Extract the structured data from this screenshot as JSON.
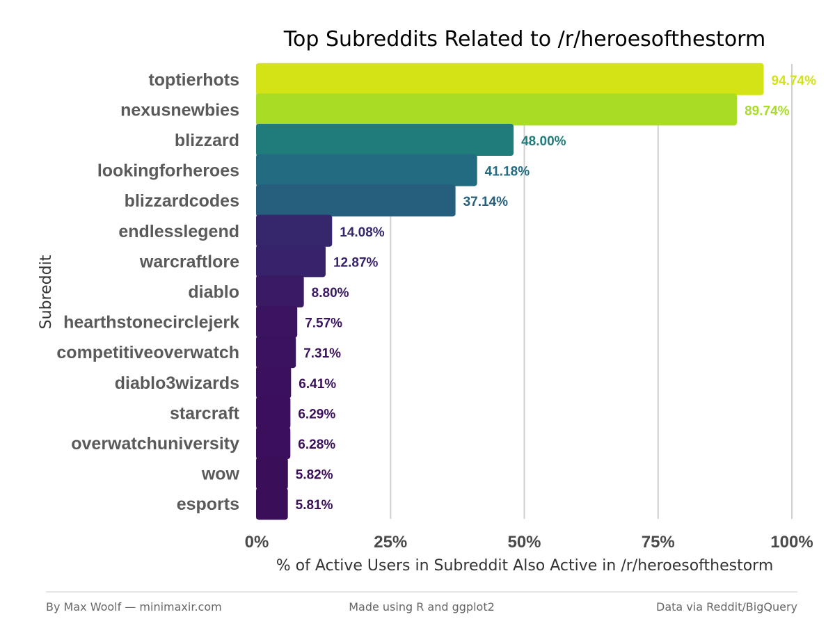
{
  "chart_data": {
    "type": "bar",
    "orientation": "horizontal",
    "title": "Top Subreddits Related to /r/heroesofthestorm",
    "xlabel": "% of Active Users in Subreddit Also Active in /r/heroesofthestorm",
    "ylabel": "Subreddit",
    "xlim": [
      0,
      100
    ],
    "x_ticks": [
      "0%",
      "25%",
      "50%",
      "75%",
      "100%"
    ],
    "grid": "vertical major lines",
    "categories": [
      "toptierhots",
      "nexusnewbies",
      "blizzard",
      "lookingforheroes",
      "blizzardcodes",
      "endlesslegend",
      "warcraftlore",
      "diablo",
      "hearthstonecirclejerk",
      "competitiveoverwatch",
      "diablo3wizards",
      "starcraft",
      "overwatchuniversity",
      "wow",
      "esports"
    ],
    "values": [
      94.74,
      89.74,
      48.0,
      41.18,
      37.14,
      14.08,
      12.87,
      8.8,
      7.57,
      7.31,
      6.41,
      6.29,
      6.28,
      5.82,
      5.81
    ],
    "value_labels": [
      "94.74%",
      "89.74%",
      "48.00%",
      "41.18%",
      "37.14%",
      "14.08%",
      "12.87%",
      "8.80%",
      "7.57%",
      "7.31%",
      "6.41%",
      "6.29%",
      "6.28%",
      "5.82%",
      "5.81%"
    ],
    "colors": [
      "#d4e316",
      "#a8dc25",
      "#1f7c7a",
      "#226b80",
      "#265e7d",
      "#36266b",
      "#37236b",
      "#3a1a63",
      "#3a145f",
      "#3a135e",
      "#3b105c",
      "#3b0f5b",
      "#3b0f5b",
      "#3b0e5a",
      "#3b0e5a"
    ]
  },
  "footer": {
    "left": "By Max Woolf — minimaxir.com",
    "center": "Made using R and ggplot2",
    "right": "Data via Reddit/BigQuery"
  }
}
